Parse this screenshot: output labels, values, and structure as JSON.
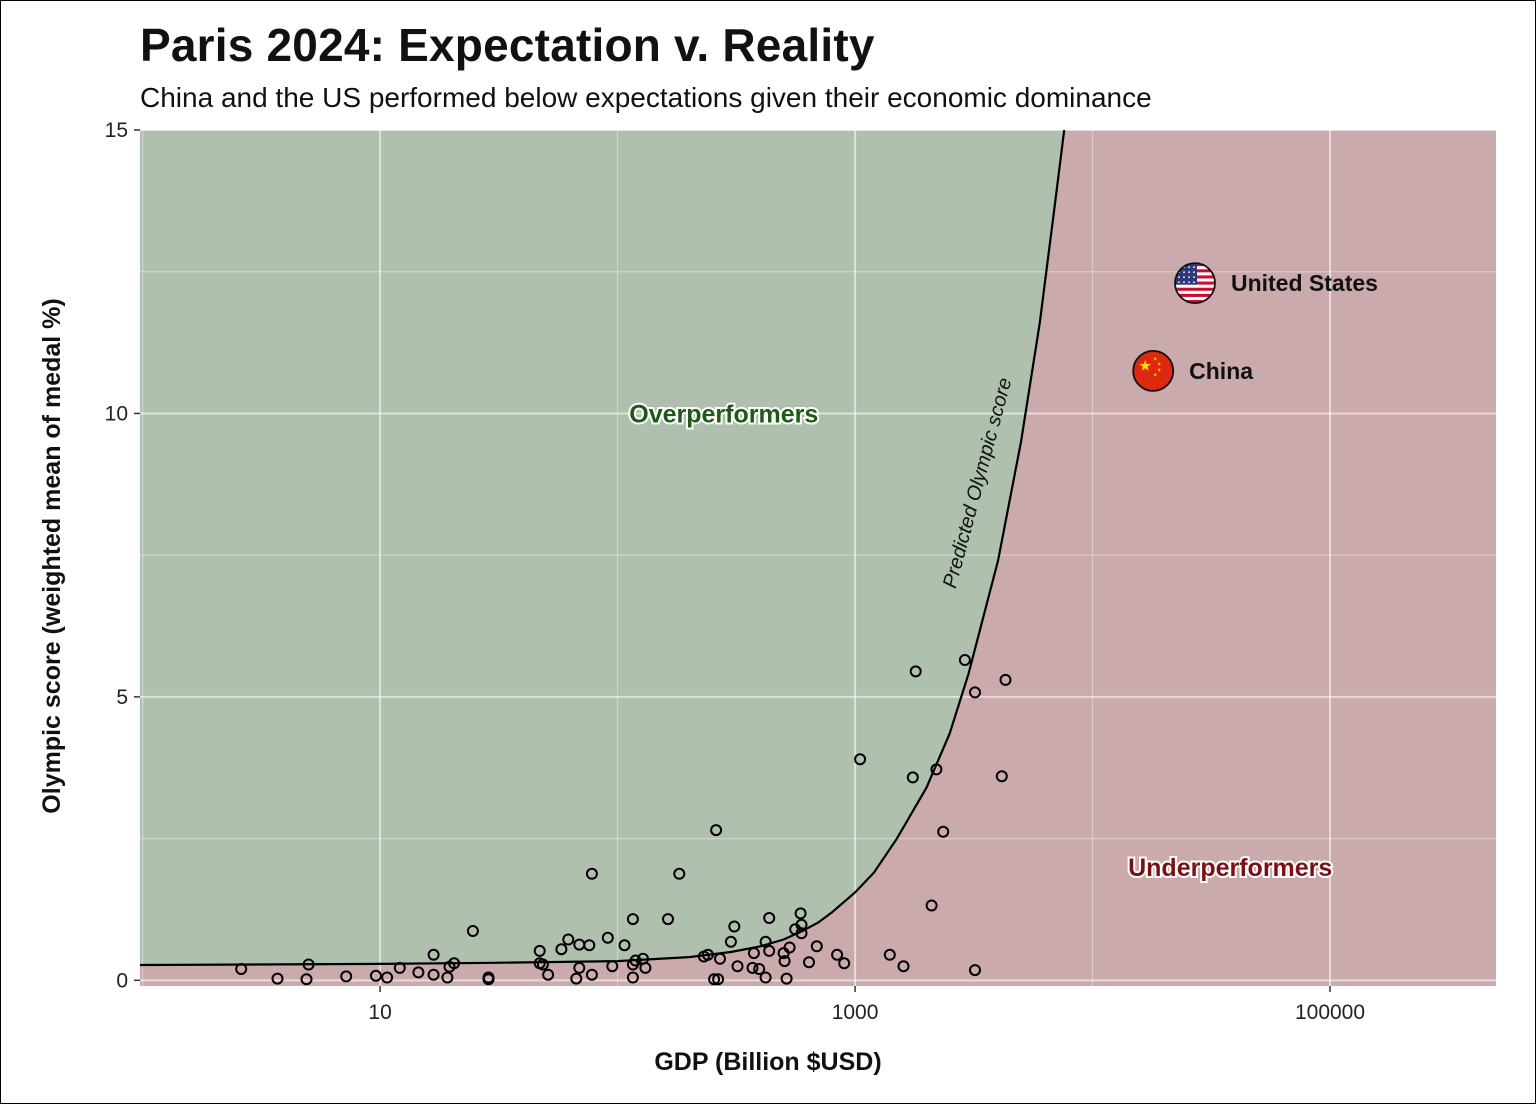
{
  "chart_data": {
    "type": "scatter",
    "title": "Paris 2024: Expectation v. Reality",
    "subtitle": "China and the US performed below expectations given their economic dominance",
    "xlabel": "GDP (Billion $USD)",
    "ylabel": "Olympic score (weighted mean of medal %)",
    "x_scale": "log10",
    "xlim": [
      0.975,
      500000
    ],
    "ylim": [
      -0.1,
      15
    ],
    "x_ticks": [
      10,
      1000,
      100000
    ],
    "x_tick_labels": [
      "10",
      "1000",
      "100000"
    ],
    "y_ticks": [
      0,
      5,
      10,
      15
    ],
    "y_tick_labels": [
      "0",
      "5",
      "10",
      "15"
    ],
    "grid": true,
    "zone_labels": {
      "over": "Overperformers",
      "under": "Underperformers"
    },
    "zone_colors": {
      "over": "#afc1ae",
      "under": "#cbaaad",
      "over_text": "#1e5a14",
      "under_text": "#7a1015"
    },
    "curve_label": "Predicted Olympic score",
    "curve": [
      [
        0.975,
        0.27
      ],
      [
        10,
        0.29
      ],
      [
        30,
        0.31
      ],
      [
        100,
        0.34
      ],
      [
        200,
        0.41
      ],
      [
        300,
        0.5
      ],
      [
        400,
        0.6
      ],
      [
        500,
        0.72
      ],
      [
        600,
        0.87
      ],
      [
        700,
        1.02
      ],
      [
        800,
        1.2
      ],
      [
        1000,
        1.55
      ],
      [
        1200,
        1.9
      ],
      [
        1500,
        2.5
      ],
      [
        2000,
        3.4
      ],
      [
        2500,
        4.35
      ],
      [
        3000,
        5.4
      ],
      [
        4000,
        7.4
      ],
      [
        5000,
        9.5
      ],
      [
        6000,
        11.6
      ],
      [
        7000,
        13.8
      ],
      [
        7600,
        15.0
      ]
    ],
    "highlighted": [
      {
        "name": "United States",
        "x": 27000,
        "y": 12.3,
        "flag": "us-flag"
      },
      {
        "name": "China",
        "x": 18000,
        "y": 10.75,
        "flag": "china-flag"
      }
    ],
    "points": [
      [
        2.6,
        0.2
      ],
      [
        3.7,
        0.03
      ],
      [
        5.0,
        0.28
      ],
      [
        4.9,
        0.02
      ],
      [
        7.2,
        0.07
      ],
      [
        9.6,
        0.08
      ],
      [
        10.7,
        0.05
      ],
      [
        12.1,
        0.22
      ],
      [
        14.5,
        0.14
      ],
      [
        16.8,
        0.45
      ],
      [
        16.8,
        0.1
      ],
      [
        19.2,
        0.05
      ],
      [
        19.6,
        0.24
      ],
      [
        20.5,
        0.3
      ],
      [
        24.6,
        0.87
      ],
      [
        28.6,
        0.05
      ],
      [
        28.6,
        0.02
      ],
      [
        47,
        0.52
      ],
      [
        47,
        0.3
      ],
      [
        48.5,
        0.28
      ],
      [
        51,
        0.1
      ],
      [
        58,
        0.55
      ],
      [
        62,
        0.72
      ],
      [
        69,
        0.63
      ],
      [
        69,
        0.22
      ],
      [
        67,
        0.03
      ],
      [
        76,
        0.62
      ],
      [
        78,
        1.88
      ],
      [
        78,
        0.1
      ],
      [
        91,
        0.75
      ],
      [
        95,
        0.25
      ],
      [
        107,
        0.62
      ],
      [
        116,
        1.08
      ],
      [
        116,
        0.28
      ],
      [
        116,
        0.05
      ],
      [
        119,
        0.35
      ],
      [
        128,
        0.38
      ],
      [
        131,
        0.22
      ],
      [
        163,
        1.08
      ],
      [
        182,
        1.88
      ],
      [
        231,
        0.42
      ],
      [
        240,
        0.45
      ],
      [
        260,
        2.65
      ],
      [
        255,
        0.02
      ],
      [
        265,
        0.02
      ],
      [
        270,
        0.38
      ],
      [
        300,
        0.68
      ],
      [
        310,
        0.95
      ],
      [
        320,
        0.25
      ],
      [
        370,
        0.22
      ],
      [
        375,
        0.48
      ],
      [
        395,
        0.2
      ],
      [
        420,
        0.68
      ],
      [
        420,
        0.05
      ],
      [
        435,
        1.1
      ],
      [
        435,
        0.52
      ],
      [
        500,
        0.48
      ],
      [
        505,
        0.34
      ],
      [
        515,
        0.03
      ],
      [
        530,
        0.58
      ],
      [
        560,
        0.9
      ],
      [
        590,
        1.18
      ],
      [
        595,
        0.83
      ],
      [
        595,
        0.98
      ],
      [
        640,
        0.32
      ],
      [
        690,
        0.6
      ],
      [
        840,
        0.45
      ],
      [
        900,
        0.3
      ],
      [
        1050,
        3.9
      ],
      [
        1400,
        0.45
      ],
      [
        1600,
        0.25
      ],
      [
        1750,
        3.58
      ],
      [
        1800,
        5.45
      ],
      [
        2100,
        1.32
      ],
      [
        2200,
        3.72
      ],
      [
        2350,
        2.62
      ],
      [
        2900,
        5.65
      ],
      [
        3200,
        5.08
      ],
      [
        3200,
        0.18
      ],
      [
        4150,
        3.6
      ],
      [
        4300,
        5.3
      ]
    ]
  }
}
